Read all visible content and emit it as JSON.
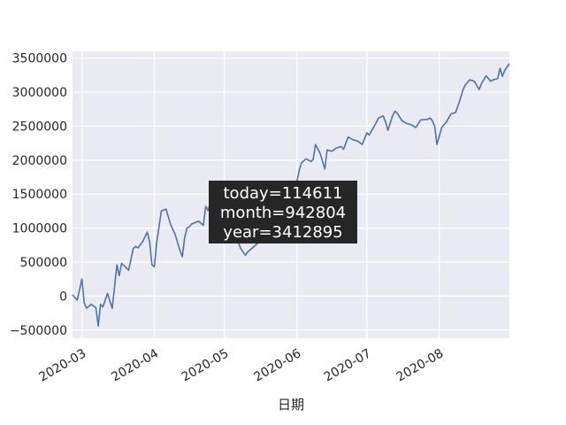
{
  "chart_data": {
    "type": "line",
    "xlabel": "日期",
    "ylabel": "",
    "x_ticks": [
      "2020-03",
      "2020-04",
      "2020-05",
      "2020-06",
      "2020-07",
      "2020-08"
    ],
    "xlim": [
      "2020-02-26",
      "2020-08-31"
    ],
    "y_ticks": [
      "−500000",
      "0",
      "500000",
      "1000000",
      "1500000",
      "2000000",
      "2500000",
      "3000000",
      "3500000"
    ],
    "ylim": [
      -620000,
      3600000
    ],
    "grid": true,
    "series_color": "#4c72b0",
    "series": [
      {
        "x": [
          "2020-02-26",
          "2020-02-28",
          "2020-03-01",
          "2020-03-02",
          "2020-03-03",
          "2020-03-05",
          "2020-03-07",
          "2020-03-08",
          "2020-03-09",
          "2020-03-10",
          "2020-03-12",
          "2020-03-14",
          "2020-03-16",
          "2020-03-17",
          "2020-03-18",
          "2020-03-19",
          "2020-03-21",
          "2020-03-23",
          "2020-03-24",
          "2020-03-25",
          "2020-03-27",
          "2020-03-29",
          "2020-03-30",
          "2020-03-31",
          "2020-04-01",
          "2020-04-02",
          "2020-04-04",
          "2020-04-06",
          "2020-04-08",
          "2020-04-10",
          "2020-04-12",
          "2020-04-13",
          "2020-04-14",
          "2020-04-15",
          "2020-04-16",
          "2020-04-17",
          "2020-04-20",
          "2020-04-22",
          "2020-04-23",
          "2020-04-24",
          "2020-04-25",
          "2020-04-27",
          "2020-04-29",
          "2020-05-02",
          "2020-05-04",
          "2020-05-06",
          "2020-05-08",
          "2020-05-10",
          "2020-05-11",
          "2020-05-14",
          "2020-05-16",
          "2020-05-18",
          "2020-05-20",
          "2020-05-22",
          "2020-05-24",
          "2020-05-26",
          "2020-05-28",
          "2020-05-30",
          "2020-06-01",
          "2020-06-02",
          "2020-06-03",
          "2020-06-05",
          "2020-06-07",
          "2020-06-08",
          "2020-06-09",
          "2020-06-11",
          "2020-06-13",
          "2020-06-14",
          "2020-06-16",
          "2020-06-18",
          "2020-06-20",
          "2020-06-21",
          "2020-06-23",
          "2020-06-25",
          "2020-06-27",
          "2020-06-29",
          "2020-07-01",
          "2020-07-02",
          "2020-07-04",
          "2020-07-06",
          "2020-07-08",
          "2020-07-09",
          "2020-07-10",
          "2020-07-12",
          "2020-07-13",
          "2020-07-14",
          "2020-07-16",
          "2020-07-18",
          "2020-07-20",
          "2020-07-22",
          "2020-07-24",
          "2020-07-27",
          "2020-07-28",
          "2020-07-29",
          "2020-07-30",
          "2020-07-31",
          "2020-08-02",
          "2020-08-04",
          "2020-08-05",
          "2020-08-06",
          "2020-08-08",
          "2020-08-10",
          "2020-08-11",
          "2020-08-12",
          "2020-08-14",
          "2020-08-16",
          "2020-08-18",
          "2020-08-19",
          "2020-08-21",
          "2020-08-23",
          "2020-08-24",
          "2020-08-26",
          "2020-08-27",
          "2020-08-28",
          "2020-08-29",
          "2020-08-31"
        ],
        "y": [
          20000,
          -60000,
          250000,
          -100000,
          -180000,
          -120000,
          -170000,
          -440000,
          -120000,
          -160000,
          40000,
          -180000,
          460000,
          300000,
          480000,
          450000,
          380000,
          700000,
          730000,
          710000,
          800000,
          940000,
          800000,
          460000,
          430000,
          780000,
          1250000,
          1280000,
          1050000,
          900000,
          670000,
          580000,
          860000,
          1000000,
          1020000,
          1060000,
          1100000,
          1040000,
          1320000,
          1260000,
          1380000,
          1430000,
          1300000,
          1050000,
          910000,
          880000,
          700000,
          600000,
          650000,
          740000,
          800000,
          830000,
          900000,
          1000000,
          1100000,
          1300000,
          1400000,
          1520000,
          1680000,
          1840000,
          1960000,
          2020000,
          1980000,
          2010000,
          2230000,
          2100000,
          1870000,
          2150000,
          2130000,
          2180000,
          2200000,
          2160000,
          2340000,
          2300000,
          2280000,
          2230000,
          2400000,
          2370000,
          2490000,
          2620000,
          2650000,
          2560000,
          2440000,
          2650000,
          2720000,
          2690000,
          2580000,
          2540000,
          2520000,
          2480000,
          2590000,
          2600000,
          2620000,
          2580000,
          2500000,
          2230000,
          2480000,
          2560000,
          2620000,
          2680000,
          2700000,
          2900000,
          3020000,
          3100000,
          3180000,
          3160000,
          3040000,
          3120000,
          3240000,
          3160000,
          3180000,
          3200000,
          3350000,
          3230000,
          3320000,
          3420000
        ]
      }
    ],
    "annotation": {
      "lines": [
        "today=114611",
        "month=942804",
        "year=3412895"
      ],
      "box_color": "#262626",
      "text_color": "#ffffff"
    }
  }
}
